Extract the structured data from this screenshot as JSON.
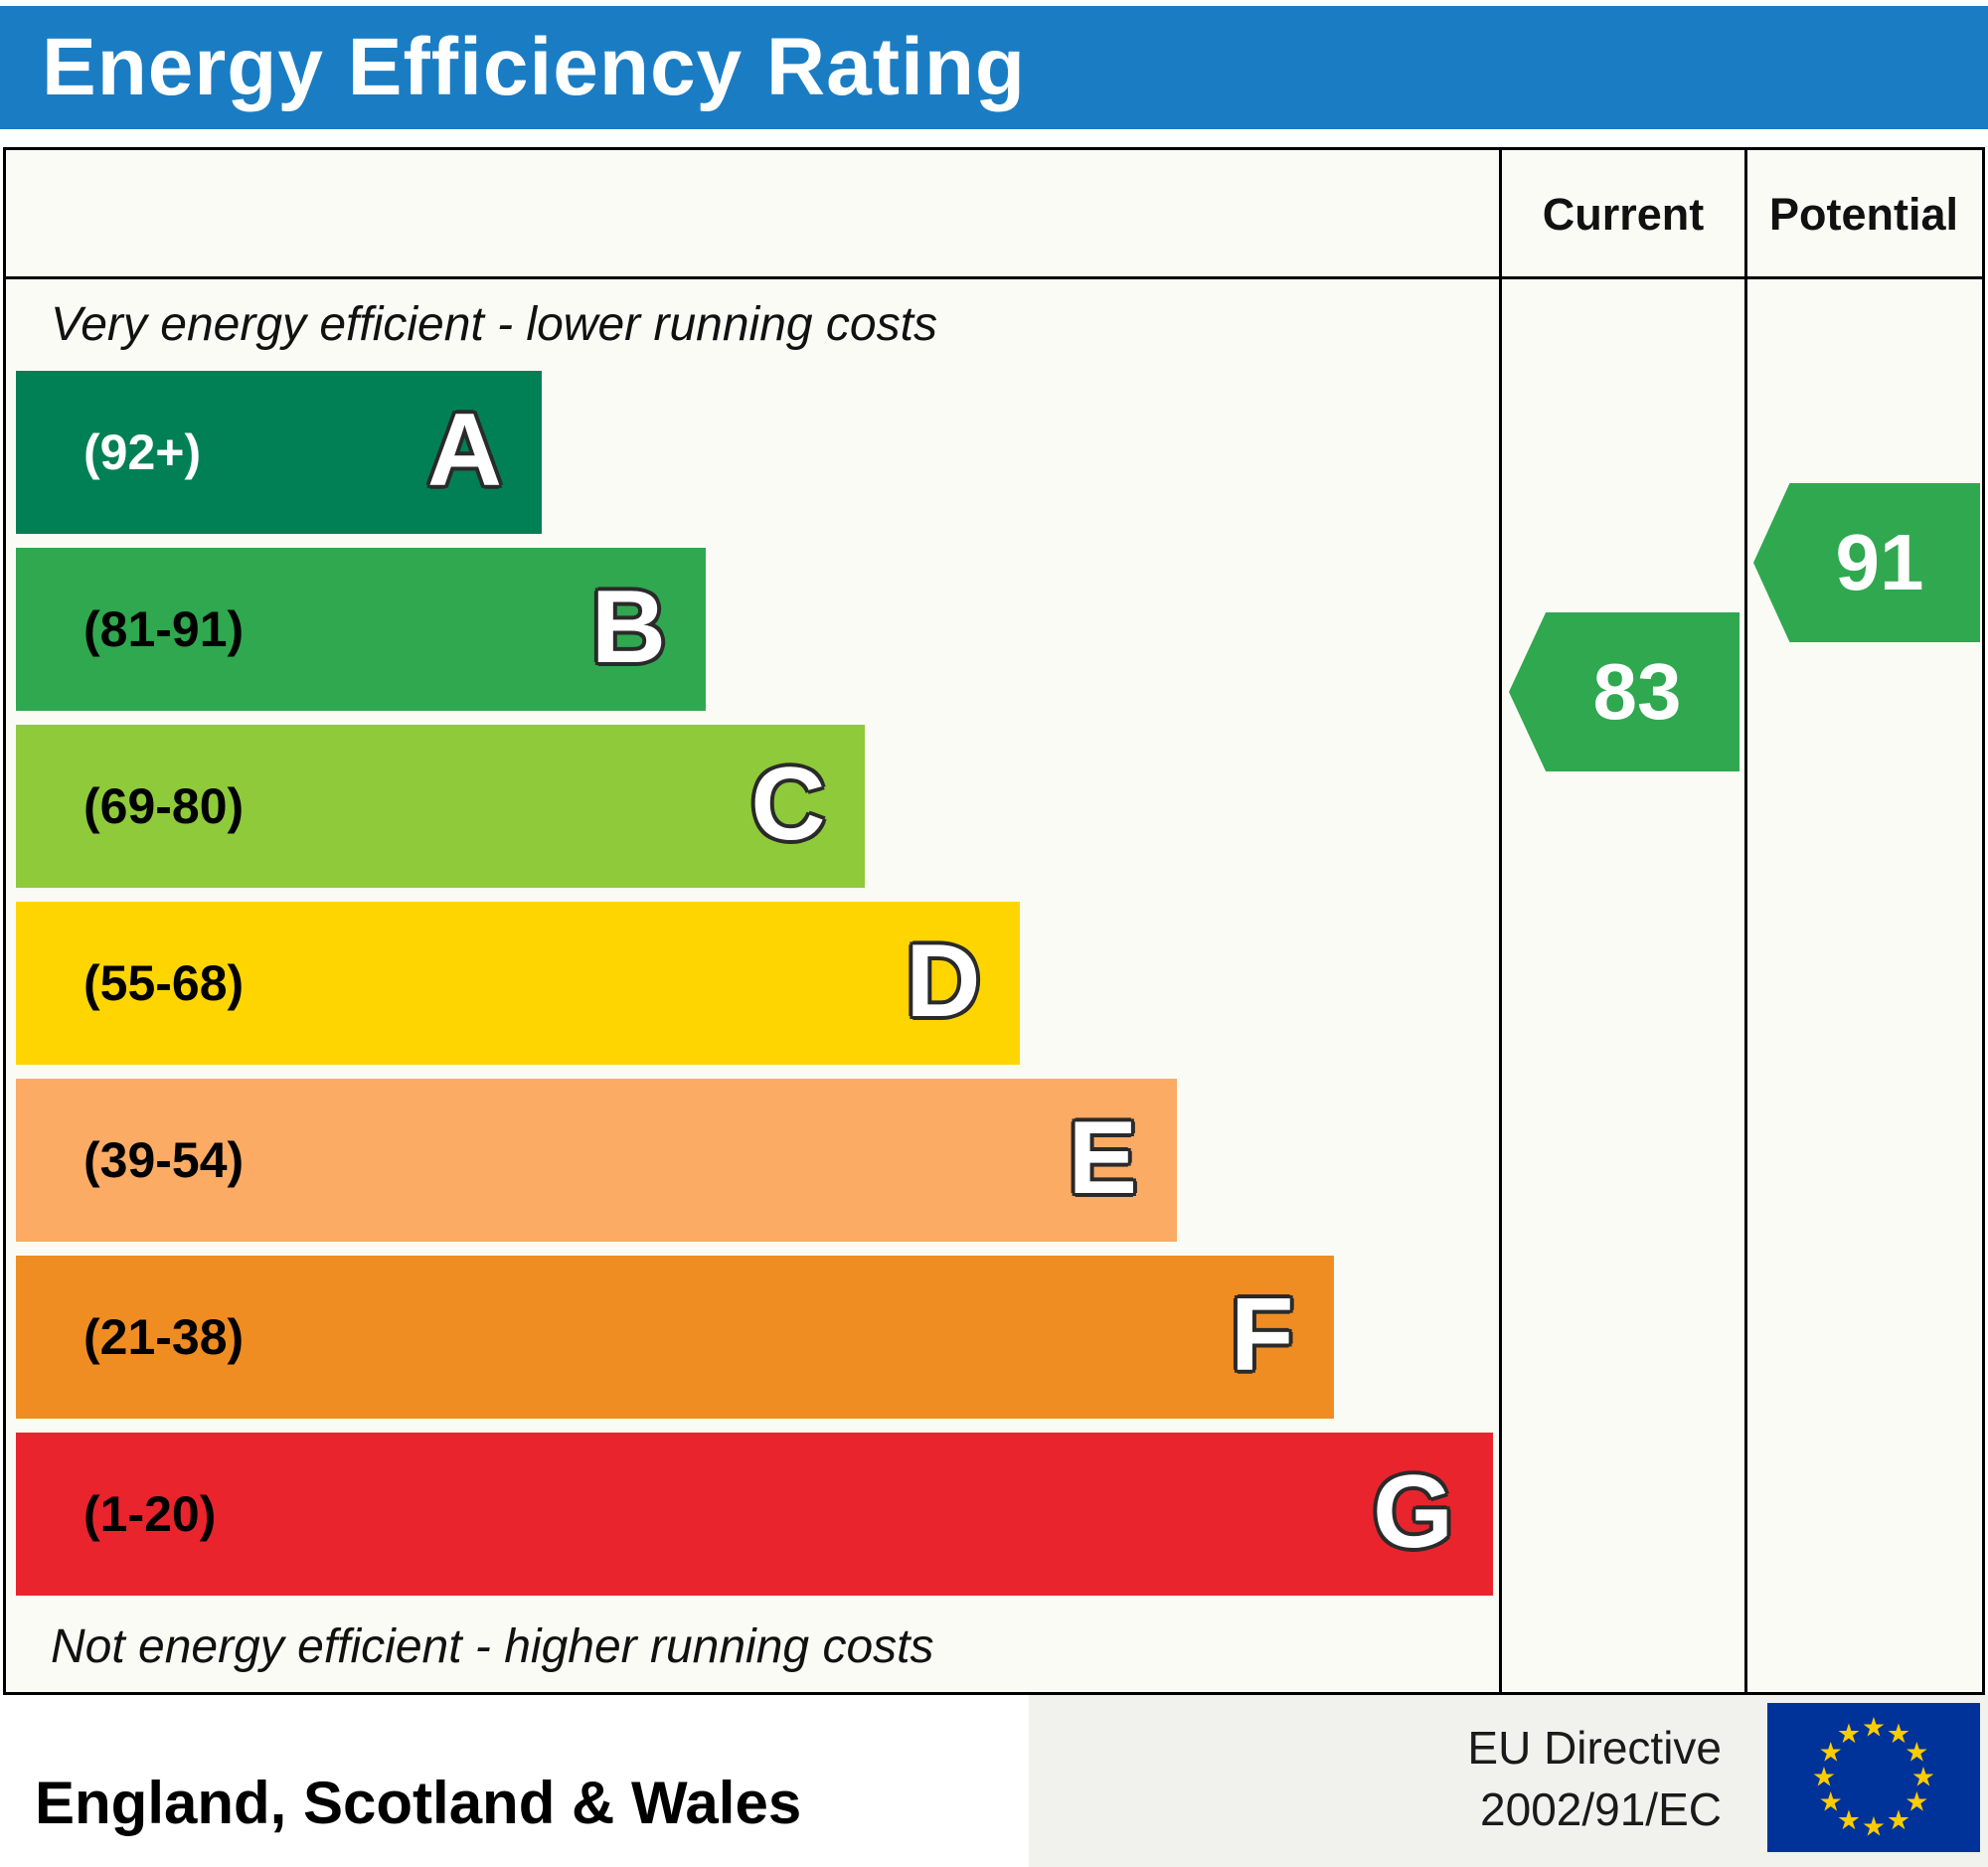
{
  "header": {
    "title": "Energy Efficiency Rating",
    "bg_color": "#1a7dc4"
  },
  "table": {
    "current_label": "Current",
    "potential_label": "Potential",
    "top_note": "Very energy efficient - lower running costs",
    "bottom_note": "Not energy efficient - higher running costs"
  },
  "bands": [
    {
      "letter": "A",
      "range": "(92+)",
      "color": "#008054",
      "range_color": "#ffffff",
      "width_pct": 35.6
    },
    {
      "letter": "B",
      "range": "(81-91)",
      "color": "#2fa84f",
      "range_color": "#000000",
      "width_pct": 46.7
    },
    {
      "letter": "C",
      "range": "(69-80)",
      "color": "#8fca3b",
      "range_color": "#000000",
      "width_pct": 57.5
    },
    {
      "letter": "D",
      "range": "(55-68)",
      "color": "#ffd500",
      "range_color": "#000000",
      "width_pct": 68.0
    },
    {
      "letter": "E",
      "range": "(39-54)",
      "color": "#fbab64",
      "range_color": "#000000",
      "width_pct": 78.6
    },
    {
      "letter": "F",
      "range": "(21-38)",
      "color": "#ef8d22",
      "range_color": "#000000",
      "width_pct": 89.2
    },
    {
      "letter": "G",
      "range": "(1-20)",
      "color": "#e9242d",
      "range_color": "#000000",
      "width_pct": 100.0
    }
  ],
  "ratings": {
    "current": {
      "value": "83",
      "color": "#2fa84f"
    },
    "potential": {
      "value": "91",
      "color": "#2fa84f"
    }
  },
  "footer": {
    "region": "England, Scotland & Wales",
    "directive_line1": "EU Directive",
    "directive_line2": "2002/91/EC",
    "flag": {
      "bg": "#003399",
      "star_color": "#ffcc00"
    }
  },
  "chart_data": {
    "type": "bar",
    "orientation": "horizontal",
    "title": "Energy Efficiency Rating",
    "categories": [
      "A",
      "B",
      "C",
      "D",
      "E",
      "F",
      "G"
    ],
    "band_ranges": [
      "92+",
      "81-91",
      "69-80",
      "55-68",
      "39-54",
      "21-38",
      "1-20"
    ],
    "band_colors": [
      "#008054",
      "#2fa84f",
      "#8fca3b",
      "#ffd500",
      "#fbab64",
      "#ef8d22",
      "#e9242d"
    ],
    "series": [
      {
        "name": "Current",
        "value": 83,
        "band": "B"
      },
      {
        "name": "Potential",
        "value": 91,
        "band": "B"
      }
    ],
    "top_label": "Very energy efficient - lower running costs",
    "bottom_label": "Not energy efficient - higher running costs",
    "region": "England, Scotland & Wales",
    "directive": "EU Directive 2002/91/EC",
    "legend_position": "none",
    "grid": false
  }
}
